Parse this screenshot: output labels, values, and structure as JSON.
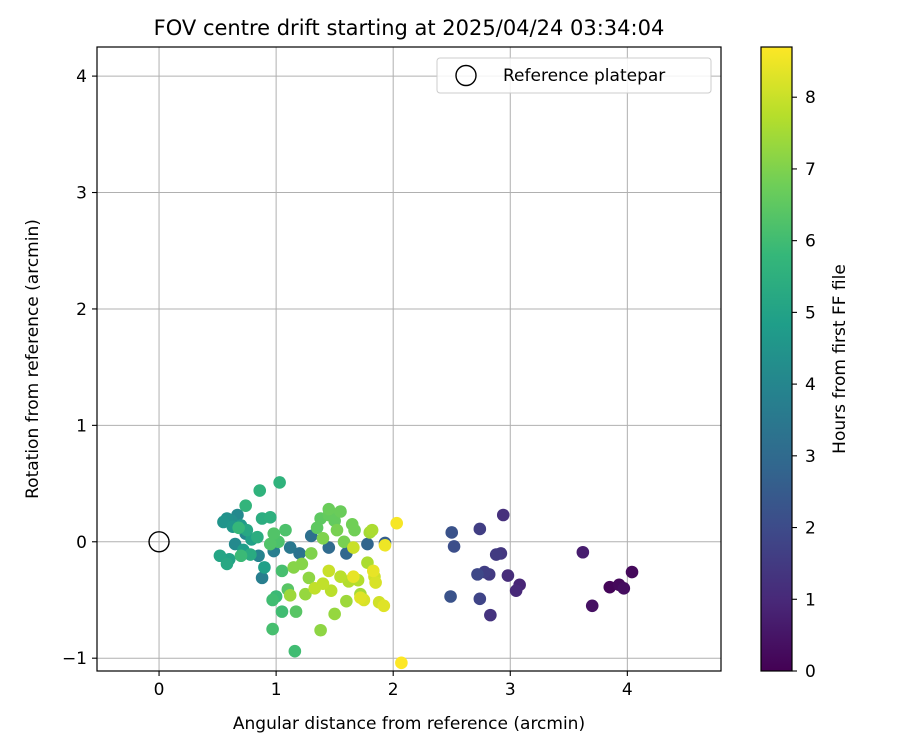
{
  "chart_data": {
    "type": "scatter",
    "title": "FOV centre drift starting at 2025/04/24 03:34:04",
    "xlabel": "Angular distance from reference (arcmin)",
    "ylabel": "Rotation from reference (arcmin)",
    "xlim": [
      -0.53,
      4.8
    ],
    "ylim": [
      -1.11,
      4.25
    ],
    "xticks": [
      0,
      1,
      2,
      3,
      4
    ],
    "yticks": [
      -1,
      0,
      1,
      2,
      3,
      4
    ],
    "grid": true,
    "legend": {
      "position": "top-right",
      "entries": [
        "Reference platepar"
      ]
    },
    "reference_point": {
      "x": 0,
      "y": 0,
      "label": "Reference platepar"
    },
    "colorbar": {
      "label": "Hours from first FF file",
      "range": [
        0,
        8.7
      ],
      "ticks": [
        0,
        1,
        2,
        3,
        4,
        5,
        6,
        7,
        8
      ],
      "colormap": [
        "#440154",
        "#482878",
        "#3e4989",
        "#31688e",
        "#26828e",
        "#1f9e89",
        "#35b779",
        "#6ece58",
        "#b5de2b",
        "#fde725"
      ]
    },
    "points": [
      {
        "x": 3.85,
        "y": -0.39,
        "t": 0.1
      },
      {
        "x": 3.93,
        "y": -0.37,
        "t": 0.2
      },
      {
        "x": 3.97,
        "y": -0.4,
        "t": 0.3
      },
      {
        "x": 4.04,
        "y": -0.26,
        "t": 0.2
      },
      {
        "x": 3.7,
        "y": -0.55,
        "t": 0.4
      },
      {
        "x": 3.62,
        "y": -0.09,
        "t": 0.7
      },
      {
        "x": 3.08,
        "y": -0.37,
        "t": 0.9
      },
      {
        "x": 3.05,
        "y": -0.42,
        "t": 1.0
      },
      {
        "x": 2.98,
        "y": -0.29,
        "t": 1.1
      },
      {
        "x": 2.94,
        "y": 0.23,
        "t": 1.2
      },
      {
        "x": 2.92,
        "y": -0.1,
        "t": 1.4
      },
      {
        "x": 2.88,
        "y": -0.11,
        "t": 1.5
      },
      {
        "x": 2.83,
        "y": -0.63,
        "t": 1.3
      },
      {
        "x": 2.82,
        "y": -0.28,
        "t": 1.5
      },
      {
        "x": 2.78,
        "y": -0.26,
        "t": 1.6
      },
      {
        "x": 2.74,
        "y": 0.11,
        "t": 1.6
      },
      {
        "x": 2.74,
        "y": -0.49,
        "t": 1.8
      },
      {
        "x": 2.72,
        "y": -0.28,
        "t": 1.9
      },
      {
        "x": 2.52,
        "y": -0.04,
        "t": 2.1
      },
      {
        "x": 2.5,
        "y": 0.08,
        "t": 2.2
      },
      {
        "x": 2.49,
        "y": -0.47,
        "t": 2.2
      },
      {
        "x": 1.93,
        "y": -0.01,
        "t": 2.6
      },
      {
        "x": 1.78,
        "y": -0.02,
        "t": 2.8
      },
      {
        "x": 1.6,
        "y": -0.1,
        "t": 2.9
      },
      {
        "x": 1.45,
        "y": -0.05,
        "t": 3.0
      },
      {
        "x": 1.3,
        "y": 0.05,
        "t": 3.2
      },
      {
        "x": 1.2,
        "y": -0.1,
        "t": 3.3
      },
      {
        "x": 1.12,
        "y": -0.05,
        "t": 3.5
      },
      {
        "x": 0.98,
        "y": -0.08,
        "t": 3.7
      },
      {
        "x": 0.88,
        "y": -0.31,
        "t": 3.7
      },
      {
        "x": 0.85,
        "y": -0.12,
        "t": 3.9
      },
      {
        "x": 0.74,
        "y": 0.07,
        "t": 4.0
      },
      {
        "x": 0.67,
        "y": 0.23,
        "t": 4.1
      },
      {
        "x": 0.65,
        "y": -0.02,
        "t": 4.1
      },
      {
        "x": 0.62,
        "y": 0.18,
        "t": 4.3
      },
      {
        "x": 0.58,
        "y": 0.2,
        "t": 4.4
      },
      {
        "x": 0.55,
        "y": 0.17,
        "t": 4.5
      },
      {
        "x": 0.63,
        "y": 0.13,
        "t": 4.6
      },
      {
        "x": 0.7,
        "y": 0.14,
        "t": 4.7
      },
      {
        "x": 0.72,
        "y": -0.07,
        "t": 4.8
      },
      {
        "x": 0.79,
        "y": 0.02,
        "t": 4.9
      },
      {
        "x": 0.9,
        "y": -0.22,
        "t": 4.9
      },
      {
        "x": 0.6,
        "y": -0.15,
        "t": 5.0
      },
      {
        "x": 0.52,
        "y": -0.12,
        "t": 5.1
      },
      {
        "x": 0.58,
        "y": -0.19,
        "t": 5.2
      },
      {
        "x": 0.75,
        "y": 0.1,
        "t": 5.2
      },
      {
        "x": 0.78,
        "y": -0.11,
        "t": 5.3
      },
      {
        "x": 0.84,
        "y": 0.04,
        "t": 5.4
      },
      {
        "x": 0.88,
        "y": 0.2,
        "t": 5.4
      },
      {
        "x": 0.95,
        "y": 0.21,
        "t": 5.5
      },
      {
        "x": 1.03,
        "y": 0.51,
        "t": 5.6
      },
      {
        "x": 0.86,
        "y": 0.44,
        "t": 5.6
      },
      {
        "x": 0.74,
        "y": 0.31,
        "t": 5.7
      },
      {
        "x": 0.68,
        "y": 0.12,
        "t": 5.8
      },
      {
        "x": 0.7,
        "y": -0.12,
        "t": 5.9
      },
      {
        "x": 1.0,
        "y": -0.47,
        "t": 5.9
      },
      {
        "x": 0.97,
        "y": -0.5,
        "t": 6.0
      },
      {
        "x": 1.05,
        "y": -0.6,
        "t": 6.0
      },
      {
        "x": 1.16,
        "y": -0.94,
        "t": 6.0
      },
      {
        "x": 0.97,
        "y": -0.75,
        "t": 6.1
      },
      {
        "x": 1.05,
        "y": -0.25,
        "t": 6.1
      },
      {
        "x": 1.02,
        "y": 0.0,
        "t": 6.2
      },
      {
        "x": 1.08,
        "y": 0.1,
        "t": 6.2
      },
      {
        "x": 0.98,
        "y": 0.07,
        "t": 6.3
      },
      {
        "x": 0.95,
        "y": -0.02,
        "t": 6.3
      },
      {
        "x": 1.1,
        "y": -0.41,
        "t": 6.4
      },
      {
        "x": 1.17,
        "y": -0.6,
        "t": 6.4
      },
      {
        "x": 1.35,
        "y": 0.12,
        "t": 6.5
      },
      {
        "x": 1.38,
        "y": 0.2,
        "t": 6.5
      },
      {
        "x": 1.45,
        "y": 0.23,
        "t": 6.6
      },
      {
        "x": 1.5,
        "y": 0.18,
        "t": 6.6
      },
      {
        "x": 1.55,
        "y": 0.26,
        "t": 6.7
      },
      {
        "x": 1.45,
        "y": 0.28,
        "t": 6.7
      },
      {
        "x": 1.65,
        "y": 0.15,
        "t": 6.8
      },
      {
        "x": 1.67,
        "y": 0.1,
        "t": 6.8
      },
      {
        "x": 1.52,
        "y": 0.1,
        "t": 6.9
      },
      {
        "x": 1.58,
        "y": 0.0,
        "t": 6.9
      },
      {
        "x": 1.4,
        "y": 0.03,
        "t": 7.0
      },
      {
        "x": 1.3,
        "y": -0.1,
        "t": 7.0
      },
      {
        "x": 1.22,
        "y": -0.19,
        "t": 7.1
      },
      {
        "x": 1.15,
        "y": -0.22,
        "t": 7.1
      },
      {
        "x": 1.28,
        "y": -0.31,
        "t": 7.2
      },
      {
        "x": 1.38,
        "y": -0.76,
        "t": 7.2
      },
      {
        "x": 1.5,
        "y": -0.62,
        "t": 7.3
      },
      {
        "x": 1.25,
        "y": -0.45,
        "t": 7.3
      },
      {
        "x": 1.12,
        "y": -0.46,
        "t": 7.4
      },
      {
        "x": 1.6,
        "y": -0.51,
        "t": 7.4
      },
      {
        "x": 1.72,
        "y": -0.45,
        "t": 7.5
      },
      {
        "x": 1.8,
        "y": 0.08,
        "t": 7.5
      },
      {
        "x": 1.82,
        "y": 0.1,
        "t": 7.6
      },
      {
        "x": 1.78,
        "y": -0.18,
        "t": 7.6
      },
      {
        "x": 1.7,
        "y": -0.33,
        "t": 7.7
      },
      {
        "x": 1.62,
        "y": -0.34,
        "t": 7.7
      },
      {
        "x": 1.55,
        "y": -0.3,
        "t": 7.8
      },
      {
        "x": 1.47,
        "y": -0.42,
        "t": 7.8
      },
      {
        "x": 1.4,
        "y": -0.36,
        "t": 7.9
      },
      {
        "x": 1.33,
        "y": -0.4,
        "t": 7.9
      },
      {
        "x": 1.45,
        "y": -0.25,
        "t": 8.0
      },
      {
        "x": 1.66,
        "y": -0.05,
        "t": 8.0
      },
      {
        "x": 1.84,
        "y": -0.3,
        "t": 8.1
      },
      {
        "x": 1.88,
        "y": -0.52,
        "t": 8.1
      },
      {
        "x": 1.75,
        "y": -0.5,
        "t": 8.2
      },
      {
        "x": 1.85,
        "y": -0.35,
        "t": 8.2
      },
      {
        "x": 1.92,
        "y": -0.55,
        "t": 8.3
      },
      {
        "x": 1.72,
        "y": -0.48,
        "t": 8.3
      },
      {
        "x": 1.66,
        "y": -0.3,
        "t": 8.4
      },
      {
        "x": 1.83,
        "y": -0.25,
        "t": 8.4
      },
      {
        "x": 1.93,
        "y": -0.03,
        "t": 8.5
      },
      {
        "x": 2.03,
        "y": 0.16,
        "t": 8.6
      },
      {
        "x": 2.07,
        "y": -1.04,
        "t": 8.7
      }
    ]
  }
}
